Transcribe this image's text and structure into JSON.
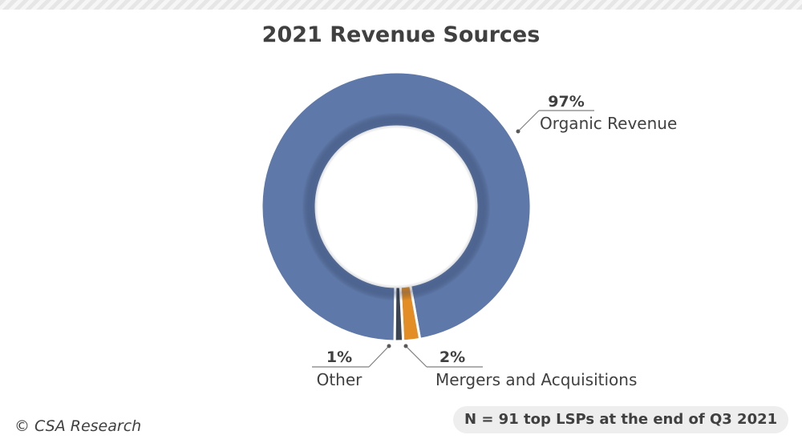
{
  "chart_data": {
    "type": "pie",
    "variant": "donut",
    "title": "2021 Revenue Sources",
    "slices": [
      {
        "label": "Organic Revenue",
        "value": 97,
        "value_label": "97%",
        "color": "#5e78a9"
      },
      {
        "label": "Mergers and Acquisitions",
        "value": 2,
        "value_label": "2%",
        "color": "#e38d27"
      },
      {
        "label": "Other",
        "value": 1,
        "value_label": "1%",
        "color": "#3c4452"
      }
    ]
  },
  "footer": {
    "credit": "© CSA Research",
    "sample_note": "N = 91 top LSPs at the end of Q3 2021"
  }
}
